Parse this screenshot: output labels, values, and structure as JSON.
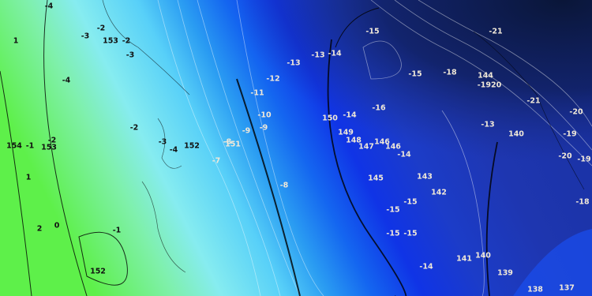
{
  "map_labels": [
    "-4",
    "-2",
    "-3",
    "153",
    "-2",
    "-3",
    "1",
    "-4",
    "-2",
    "154",
    "-1",
    "-2",
    "153",
    "1",
    "-3",
    "-4",
    "152",
    "-8",
    "151",
    "-9",
    "-7",
    "-10",
    "-9",
    "-11",
    "-12",
    "-13",
    "-13",
    "-14",
    "-15",
    "-21",
    "-15",
    "-18",
    "144",
    "-1920",
    "-21",
    "-16",
    "150",
    "-14",
    "149",
    "148",
    "147",
    "146",
    "146",
    "-14",
    "-13",
    "140",
    "-20",
    "-19",
    "-20",
    "-19",
    "-8",
    "145",
    "143",
    "142",
    "-15",
    "-15",
    "-18",
    "2",
    "0",
    "-1",
    "-15",
    "-15",
    "141",
    "140",
    "-14",
    "152",
    "139",
    "138",
    "137"
  ]
}
